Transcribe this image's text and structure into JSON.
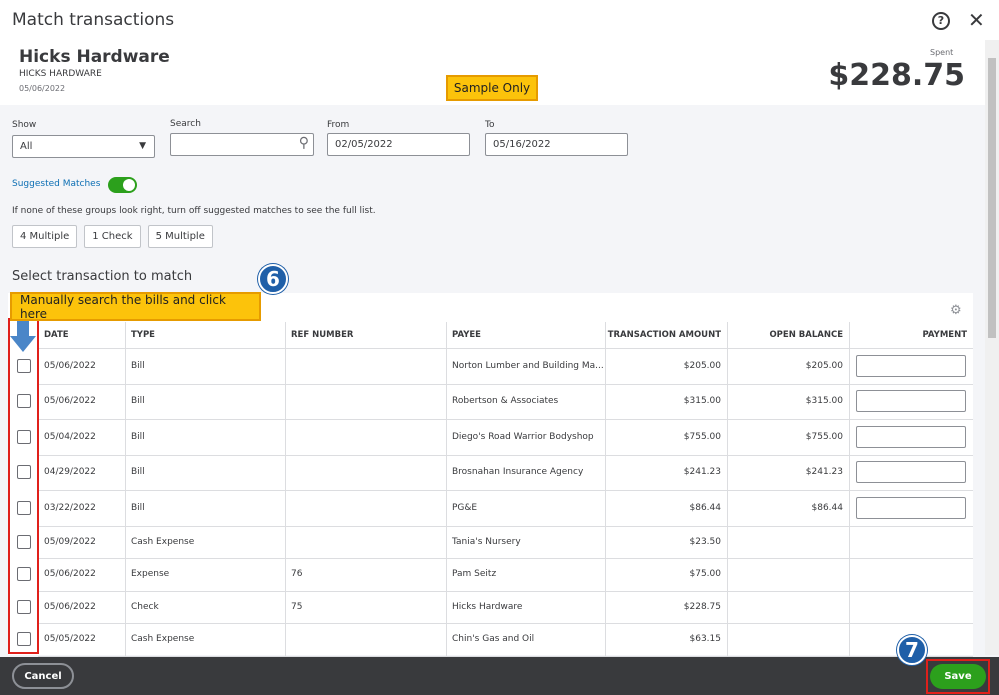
{
  "dialog": {
    "title": "Match transactions"
  },
  "header": {
    "payee": "Hicks Hardware",
    "payee_upper": "HICKS HARDWARE",
    "date": "05/06/2022",
    "amount_label": "Spent",
    "amount": "$228.75",
    "badge": "Sample Only"
  },
  "filters": {
    "show_label": "Show",
    "show_value": "All",
    "search_label": "Search",
    "from_label": "From",
    "from_value": "02/05/2022",
    "to_label": "To",
    "to_value": "05/16/2022"
  },
  "suggested": {
    "label": "Suggested Matches",
    "hint": "If none of these groups look right, turn off suggested matches to see the full list.",
    "groups": [
      "4 Multiple",
      "1 Check",
      "5 Multiple"
    ]
  },
  "section_title": "Select transaction to match",
  "callouts": [
    {
      "number": 6,
      "text": "Manually search the bills and click here"
    },
    {
      "number": 7
    }
  ],
  "table": {
    "columns": [
      "DATE",
      "TYPE",
      "REF NUMBER",
      "PAYEE",
      "TRANSACTION AMOUNT",
      "OPEN BALANCE",
      "PAYMENT"
    ],
    "rows": [
      [
        "05/06/2022",
        "Bill",
        null,
        "Norton Lumber and Building Ma...",
        "$205.00",
        "$205.00"
      ],
      [
        "05/06/2022",
        "Bill",
        null,
        "Robertson & Associates",
        "$315.00",
        "$315.00"
      ],
      [
        "05/04/2022",
        "Bill",
        null,
        "Diego's Road Warrior Bodyshop",
        "$755.00",
        "$755.00"
      ],
      [
        "04/29/2022",
        "Bill",
        null,
        "Brosnahan Insurance Agency",
        "$241.23",
        "$241.23"
      ],
      [
        "03/22/2022",
        "Bill",
        null,
        "PG&E",
        "$86.44",
        "$86.44"
      ],
      [
        "05/09/2022",
        "Cash Expense",
        null,
        "Tania's Nursery",
        "$23.50",
        null
      ],
      [
        "05/06/2022",
        "Expense",
        "76",
        "Pam Seitz",
        "$75.00",
        null
      ],
      [
        "05/06/2022",
        "Check",
        "75",
        "Hicks Hardware",
        "$228.75",
        null
      ],
      [
        "05/05/2022",
        "Cash Expense",
        null,
        "Chin's Gas and Oil",
        "$63.15",
        null
      ]
    ]
  },
  "footer": {
    "cancel": "Cancel",
    "save": "Save"
  }
}
